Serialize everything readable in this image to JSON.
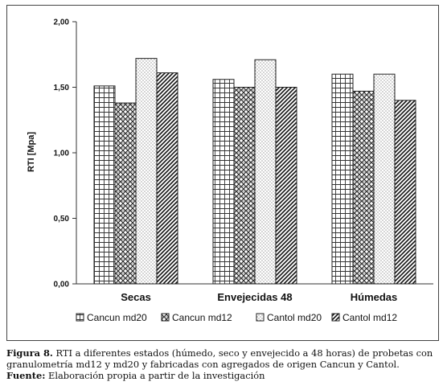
{
  "chart_data": {
    "type": "bar",
    "ylabel": "RTI [Mpa]",
    "xlabel": "",
    "ylim": [
      0,
      2
    ],
    "yticks": [
      "0,00",
      "0,50",
      "1,00",
      "1,50",
      "2,00"
    ],
    "ytick_values": [
      0,
      0.5,
      1,
      1.5,
      2
    ],
    "categories": [
      "Secas",
      "Envejecidas 48",
      "Húmedas"
    ],
    "series": [
      {
        "name": "Cancun md20",
        "values": [
          1.51,
          1.56,
          1.6
        ],
        "pattern": "grid"
      },
      {
        "name": "Cancun md12",
        "values": [
          1.38,
          1.5,
          1.47
        ],
        "pattern": "weave"
      },
      {
        "name": "Cantol md20",
        "values": [
          1.72,
          1.71,
          1.6
        ],
        "pattern": "dots"
      },
      {
        "name": "Cantol md12",
        "values": [
          1.61,
          1.5,
          1.4
        ],
        "pattern": "diagonal"
      }
    ],
    "grid": false,
    "legend_position": "bottom"
  },
  "caption": {
    "label": "Figura 8.",
    "text": " RTI a diferentes estados (húmedo, seco y envejecido a 48 horas) de probetas con granulometría md12 y md20 y fabricadas con agregados de origen Cancun y Cantol.",
    "source_label": "Fuente:",
    "source_text": " Elaboración propia a partir de la investigación"
  }
}
